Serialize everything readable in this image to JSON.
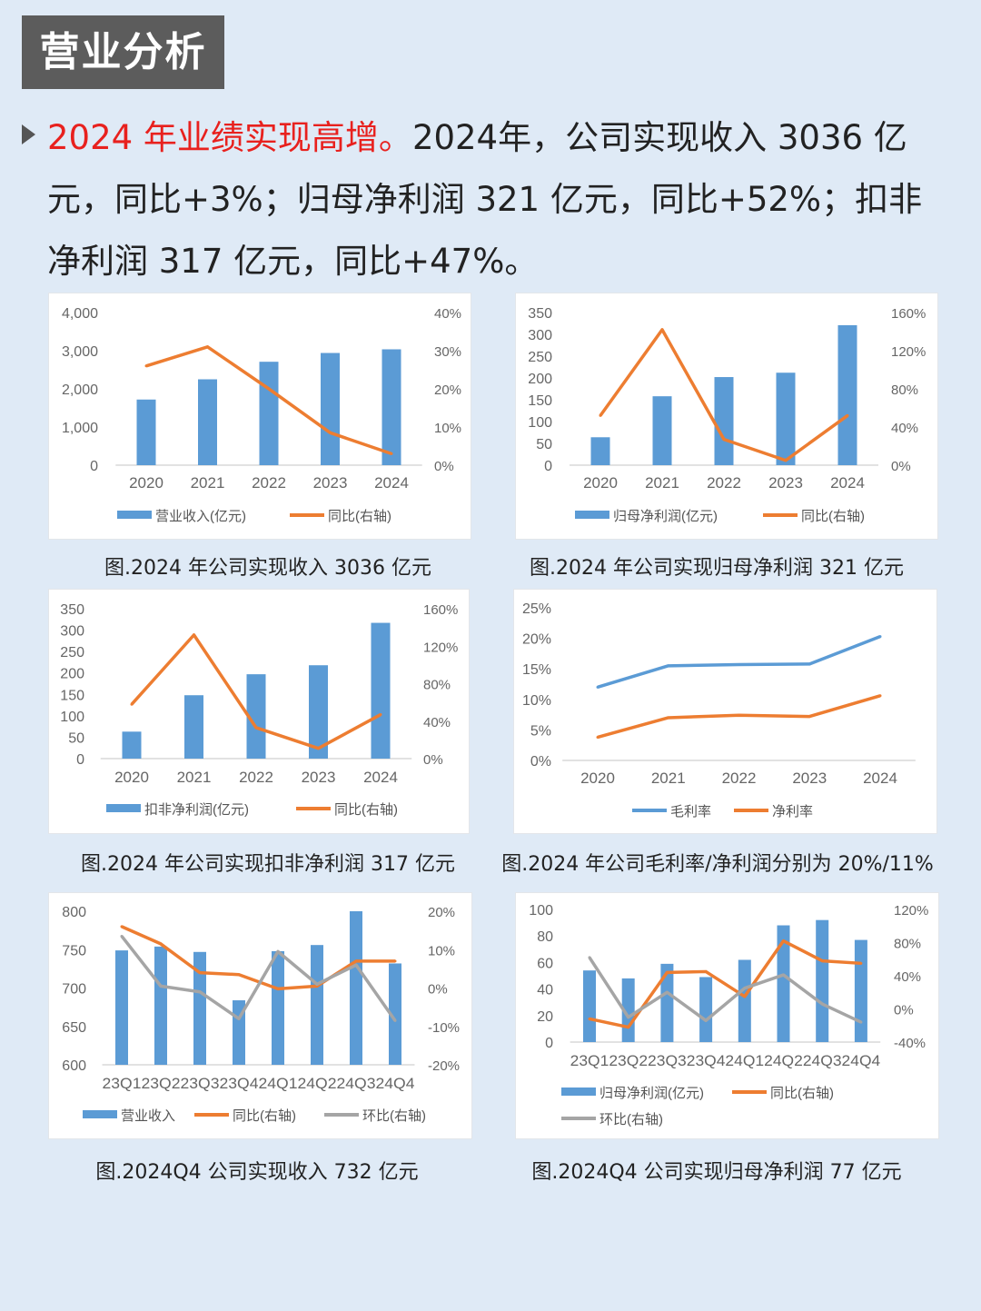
{
  "header": {
    "title": "营业分析"
  },
  "intro": {
    "highlight": "2024 年业绩实现高增。",
    "body": "2024年，公司实现收入 3036 亿元，同比+3%；归母净利润 321 亿元，同比+52%；扣非净利润 317 亿元，同比+47%。"
  },
  "colors": {
    "bar": "#5b9bd5",
    "orange": "#ed7d31",
    "gray": "#a5a5a5",
    "highlight": "#e8211e"
  },
  "chart_data": [
    {
      "type": "bar+line",
      "caption": "图.2024 年公司实现收入 3036 亿元",
      "categories": [
        "2020",
        "2021",
        "2022",
        "2023",
        "2024"
      ],
      "left_ylim": [
        0,
        4000
      ],
      "left_ticks": [
        "0",
        "1,000",
        "2,000",
        "3,000",
        "4,000"
      ],
      "right_ylim": [
        0,
        40
      ],
      "right_ticks": [
        "0%",
        "10%",
        "20%",
        "30%",
        "40%"
      ],
      "series": [
        {
          "name": "营业收入(亿元)",
          "kind": "bar",
          "axis": "left",
          "values": [
            1720,
            2250,
            2710,
            2940,
            3036
          ]
        },
        {
          "name": "同比(右轴)",
          "kind": "line",
          "axis": "right",
          "color": "orange",
          "values": [
            26,
            31,
            20,
            8.5,
            3
          ]
        }
      ],
      "legend": "bottom"
    },
    {
      "type": "bar+line",
      "caption": "图.2024 年公司实现归母净利润 321 亿元",
      "categories": [
        "2020",
        "2021",
        "2022",
        "2023",
        "2024"
      ],
      "left_ylim": [
        0,
        350
      ],
      "left_ticks": [
        "0",
        "50",
        "100",
        "150",
        "200",
        "250",
        "300",
        "350"
      ],
      "right_ylim": [
        0,
        160
      ],
      "right_ticks": [
        "0%",
        "40%",
        "80%",
        "120%",
        "160%"
      ],
      "series": [
        {
          "name": "归母净利润(亿元)",
          "kind": "bar",
          "axis": "left",
          "values": [
            64,
            158,
            202,
            212,
            321
          ]
        },
        {
          "name": "同比(右轴)",
          "kind": "line",
          "axis": "right",
          "color": "orange",
          "values": [
            52,
            142,
            27,
            5,
            52
          ]
        }
      ],
      "legend": "bottom"
    },
    {
      "type": "bar+line",
      "caption": "图.2024 年公司实现扣非净利润 317 亿元",
      "categories": [
        "2020",
        "2021",
        "2022",
        "2023",
        "2024"
      ],
      "left_ylim": [
        0,
        350
      ],
      "left_ticks": [
        "0",
        "50",
        "100",
        "150",
        "200",
        "250",
        "300",
        "350"
      ],
      "right_ylim": [
        0,
        160
      ],
      "right_ticks": [
        "0%",
        "40%",
        "80%",
        "120%",
        "160%"
      ],
      "series": [
        {
          "name": "扣非净利润(亿元)",
          "kind": "bar",
          "axis": "left",
          "values": [
            63,
            148,
            197,
            218,
            317
          ]
        },
        {
          "name": "同比(右轴)",
          "kind": "line",
          "axis": "right",
          "color": "orange",
          "values": [
            58,
            132,
            33,
            11,
            47
          ]
        }
      ],
      "legend": "bottom"
    },
    {
      "type": "line",
      "caption": "图.2024 年公司毛利率/净利润分别为 20%/11%",
      "categories": [
        "2020",
        "2021",
        "2022",
        "2023",
        "2024"
      ],
      "left_ylim": [
        0,
        25
      ],
      "left_ticks": [
        "0%",
        "5%",
        "10%",
        "15%",
        "20%",
        "25%"
      ],
      "series": [
        {
          "name": "毛利率",
          "kind": "line",
          "axis": "left",
          "color": "bar",
          "values": [
            12,
            15.5,
            15.7,
            15.8,
            20.3
          ]
        },
        {
          "name": "净利率",
          "kind": "line",
          "axis": "left",
          "color": "orange",
          "values": [
            3.8,
            7,
            7.4,
            7.2,
            10.6
          ]
        }
      ],
      "legend": "bottom"
    },
    {
      "type": "bar+line",
      "caption": "图.2024Q4 公司实现收入 732 亿元",
      "categories": [
        "23Q1",
        "23Q2",
        "23Q3",
        "23Q4",
        "24Q1",
        "24Q2",
        "24Q3",
        "24Q4"
      ],
      "left_ylim": [
        600,
        800
      ],
      "left_ticks": [
        "600",
        "650",
        "700",
        "750",
        "800"
      ],
      "right_ylim": [
        -20,
        20
      ],
      "right_ticks": [
        "-20%",
        "-10%",
        "0%",
        "10%",
        "20%"
      ],
      "series": [
        {
          "name": "营业收入",
          "kind": "bar",
          "axis": "left",
          "values": [
            749,
            754,
            747,
            684,
            748,
            756,
            800,
            732
          ]
        },
        {
          "name": "同比(右轴)",
          "kind": "line",
          "axis": "right",
          "color": "orange",
          "values": [
            16,
            11.5,
            4,
            3.5,
            -0.2,
            0.5,
            7,
            7
          ]
        },
        {
          "name": "环比(右轴)",
          "kind": "line",
          "axis": "right",
          "color": "gray",
          "values": [
            13.5,
            0.5,
            -1,
            -8,
            9.5,
            1,
            6,
            -8.5
          ]
        }
      ],
      "legend": "bottom"
    },
    {
      "type": "bar+line",
      "caption": "图.2024Q4 公司实现归母净利润 77 亿元",
      "categories": [
        "23Q1",
        "23Q2",
        "23Q3",
        "23Q4",
        "24Q1",
        "24Q2",
        "24Q3",
        "24Q4"
      ],
      "left_ylim": [
        0,
        100
      ],
      "left_ticks": [
        "0",
        "20",
        "40",
        "60",
        "80",
        "100"
      ],
      "right_ylim": [
        -40,
        120
      ],
      "right_ticks": [
        "-40%",
        "0%",
        "40%",
        "80%",
        "120%"
      ],
      "series": [
        {
          "name": "归母净利润(亿元)",
          "kind": "bar",
          "axis": "left",
          "values": [
            54,
            48,
            59,
            49,
            62,
            88,
            92,
            77
          ]
        },
        {
          "name": "同比(右轴)",
          "kind": "line",
          "axis": "right",
          "color": "orange",
          "values": [
            -12,
            -22,
            44,
            45,
            15,
            82,
            58,
            55
          ]
        },
        {
          "name": "环比(右轴)",
          "kind": "line",
          "axis": "right",
          "color": "gray",
          "values": [
            62,
            -10,
            20,
            -14,
            25,
            41,
            6,
            -16
          ]
        }
      ],
      "legend": "bottom"
    }
  ]
}
